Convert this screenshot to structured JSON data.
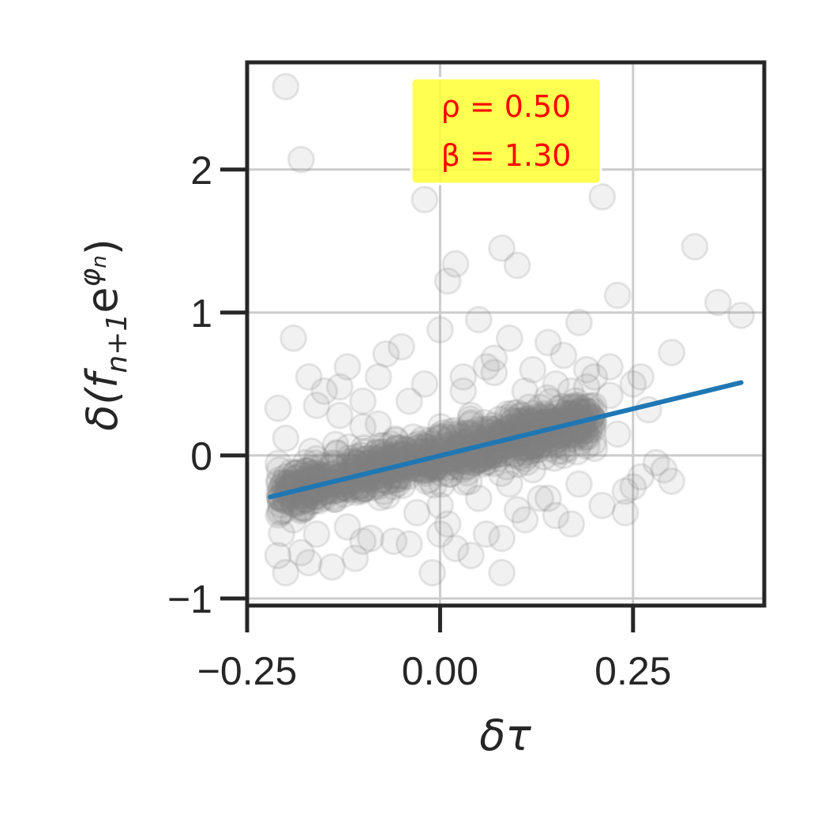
{
  "chart_data": {
    "type": "scatter",
    "xlabel_parts": [
      "δτ"
    ],
    "ylabel_parts": [
      "δ(",
      "f",
      "n+1",
      "e",
      "φ",
      "n",
      ")"
    ],
    "xlim": [
      -0.25,
      0.42
    ],
    "ylim": [
      -1.05,
      2.75
    ],
    "xticks": [
      -0.25,
      0.0,
      0.25
    ],
    "xtick_labels": [
      "−0.25",
      "0.00",
      "0.25"
    ],
    "yticks": [
      -1,
      0,
      1,
      2
    ],
    "ytick_labels": [
      "−1",
      "0",
      "1",
      "2"
    ],
    "grid": true,
    "point_color": "#808080",
    "line_color": "#1f77b4",
    "annotation_bg": "#ffff33",
    "annotation_color": "#ff0000",
    "annotation": {
      "rho": "ρ = 0.50",
      "beta": "β = 1.30"
    },
    "fit_line": {
      "slope": 1.3,
      "x": [
        -0.22,
        0.39
      ],
      "y": [
        -0.29,
        0.51
      ]
    },
    "core_cloud": {
      "x_range": [
        -0.21,
        0.2
      ],
      "slope": 1.3,
      "sigma_y": 0.08,
      "count": 900
    },
    "scatter": {
      "x": [
        -0.2,
        -0.18,
        -0.19,
        -0.02,
        0.21,
        0.33,
        0.36,
        0.39,
        0.08,
        0.1,
        0.02,
        0.01,
        0.23,
        0.3,
        0.26,
        0.29,
        0.3,
        0.25,
        0.24,
        -0.17,
        -0.12,
        -0.05,
        -0.07,
        0.0,
        0.05,
        0.09,
        0.14,
        0.18,
        -0.21,
        -0.2,
        -0.15,
        -0.1,
        -0.08,
        -0.13,
        -0.02,
        0.03,
        0.07,
        0.12,
        0.16,
        0.2,
        0.22,
        0.19,
        -0.18,
        -0.16,
        -0.1,
        -0.04,
        0.0,
        0.04,
        0.08,
        0.11,
        0.13,
        0.17,
        0.15,
        0.21,
        0.24,
        0.26,
        0.28,
        -0.19,
        -0.21,
        -0.14,
        -0.11,
        -0.06,
        -0.01,
        0.02,
        0.06,
        0.1,
        0.14,
        0.18,
        -0.2,
        -0.17,
        -0.12,
        -0.09,
        -0.03,
        0.01,
        0.05,
        0.09,
        0.12,
        0.16,
        0.2,
        0.23,
        0.27,
        -0.16,
        -0.13,
        -0.08,
        -0.04,
        0.03,
        0.07,
        0.11,
        0.15,
        0.19,
        0.22,
        0.25,
        -0.2,
        -0.15,
        -0.1,
        0.0,
        0.06,
        0.1,
        0.08,
        0.04
      ],
      "y": [
        2.58,
        2.07,
        0.82,
        1.79,
        1.81,
        1.46,
        1.07,
        0.98,
        1.45,
        1.33,
        1.34,
        1.22,
        1.12,
        0.72,
        0.55,
        -0.1,
        -0.18,
        -0.22,
        -0.4,
        0.55,
        0.62,
        0.76,
        0.71,
        0.88,
        0.95,
        0.82,
        0.79,
        0.93,
        0.33,
        0.12,
        0.45,
        0.38,
        0.55,
        0.28,
        0.5,
        0.45,
        0.68,
        0.6,
        0.7,
        0.55,
        0.62,
        0.48,
        -0.68,
        -0.55,
        -0.6,
        -0.62,
        -0.55,
        -0.7,
        -0.58,
        -0.45,
        -0.3,
        -0.48,
        -0.42,
        -0.35,
        -0.25,
        -0.15,
        -0.05,
        -0.45,
        -0.7,
        -0.78,
        -0.72,
        -0.6,
        -0.82,
        -0.65,
        -0.55,
        -0.38,
        -0.3,
        -0.2,
        -0.82,
        -0.75,
        -0.5,
        -0.58,
        -0.4,
        -0.48,
        -0.3,
        -0.2,
        -0.1,
        0.0,
        0.05,
        0.15,
        0.32,
        0.35,
        0.48,
        0.22,
        0.38,
        0.55,
        0.58,
        0.45,
        0.5,
        0.6,
        0.42,
        0.5,
        -0.3,
        -0.15,
        0.2,
        -0.35,
        0.62,
        0.3,
        -0.82,
        0.28
      ]
    }
  }
}
